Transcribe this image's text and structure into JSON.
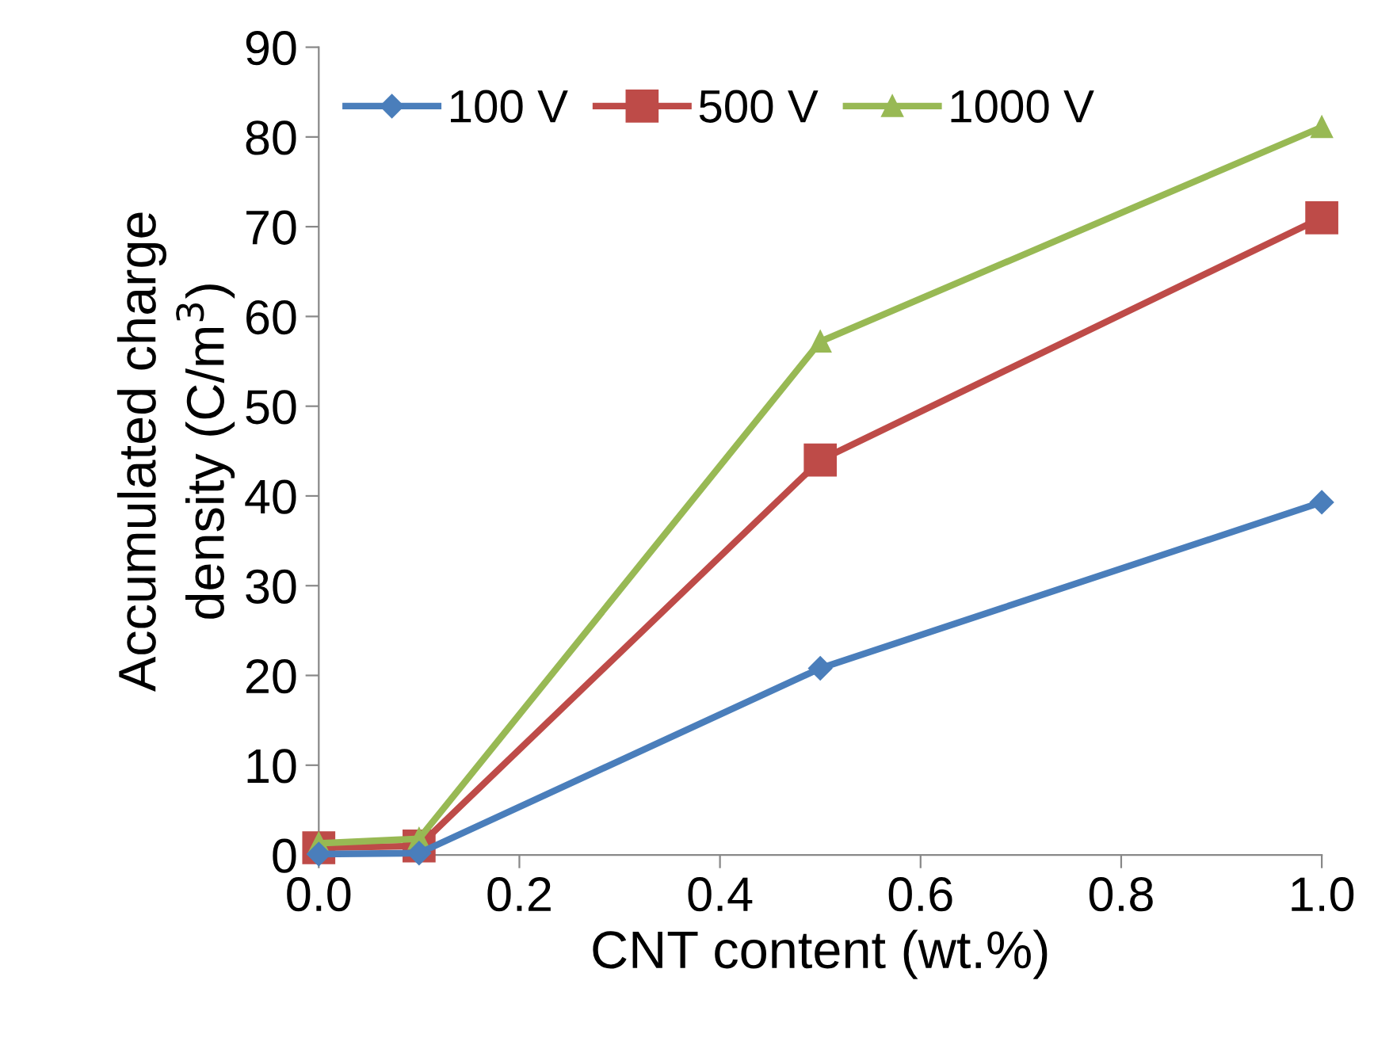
{
  "chart_data": {
    "type": "line",
    "xlabel": "CNT content (wt.%)",
    "ylabel": "Accumulated charge\ndensity (C/m$^{3}$)",
    "x": [
      0.0,
      0.1,
      0.5,
      1.0
    ],
    "series": [
      {
        "name": "100 V",
        "color": "#4a7ebb",
        "marker": "diamond",
        "values": [
          0.1,
          0.2,
          20.8,
          39.3
        ]
      },
      {
        "name": "500 V",
        "color": "#be4b48",
        "marker": "square",
        "values": [
          0.8,
          1.0,
          44.0,
          71.0
        ]
      },
      {
        "name": "1000 V",
        "color": "#98b954",
        "marker": "triangle",
        "values": [
          1.3,
          1.8,
          57.2,
          81.1
        ]
      }
    ],
    "xlim": [
      0,
      1.0
    ],
    "xticks": [
      {
        "value": 0,
        "label": "0.0"
      },
      0.2,
      0.4,
      0.6,
      0.8,
      {
        "value": 1.0,
        "label": "1.0"
      }
    ],
    "ylim": [
      0,
      90
    ],
    "yticks": [
      0,
      10,
      20,
      30,
      40,
      50,
      60,
      70,
      80,
      90
    ],
    "grid": false,
    "legend": "top",
    "line_style": "solid"
  }
}
